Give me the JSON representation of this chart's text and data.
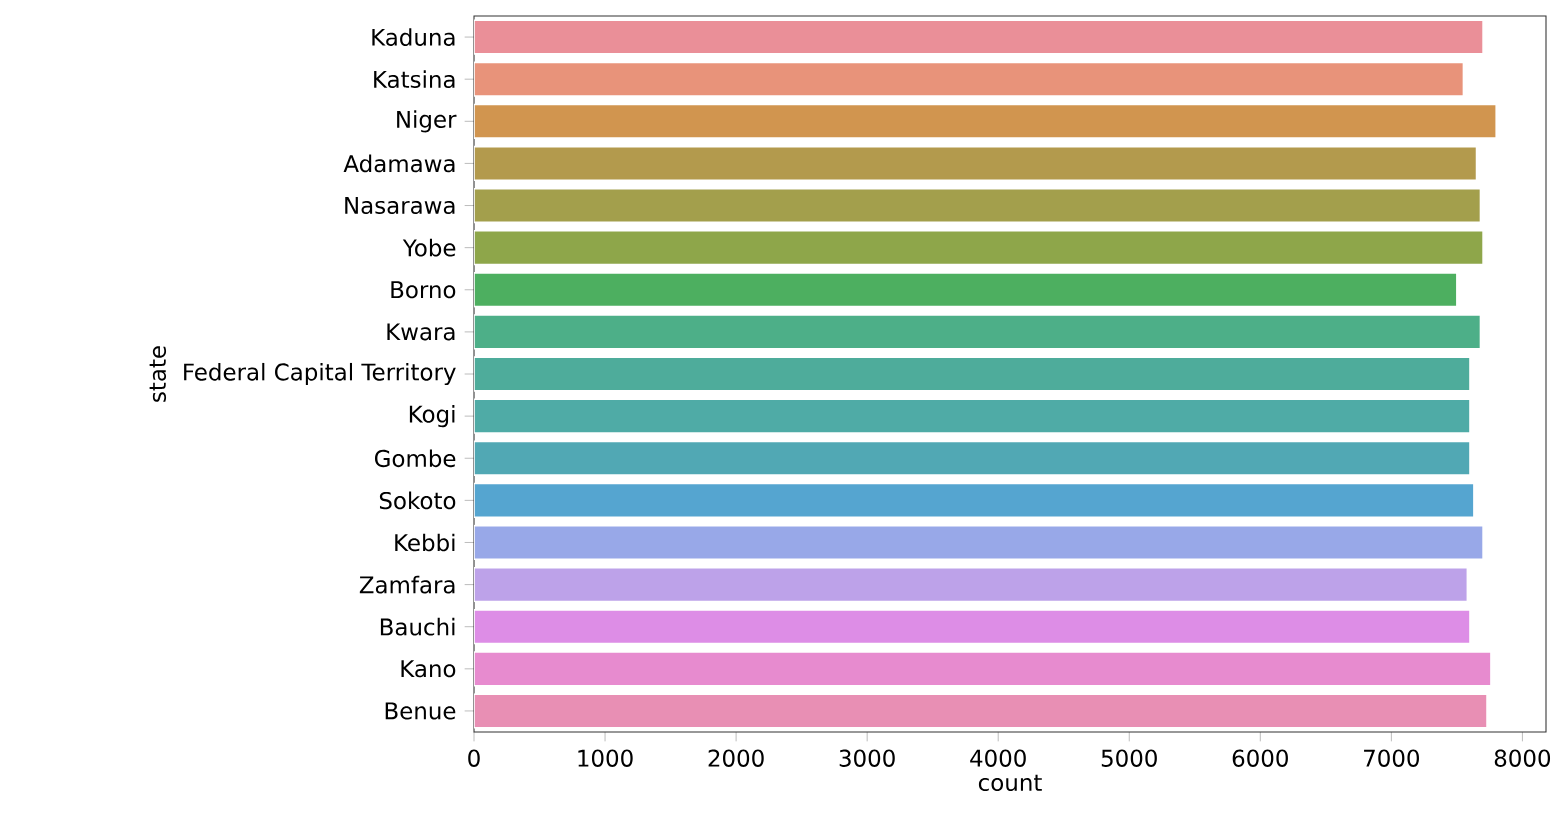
{
  "chart_data": {
    "type": "bar",
    "orientation": "horizontal",
    "xlabel": "count",
    "ylabel": "state",
    "categories": [
      "Kaduna",
      "Katsina",
      "Niger",
      "Adamawa",
      "Nasarawa",
      "Yobe",
      "Borno",
      "Kwara",
      "Federal Capital Territory",
      "Kogi",
      "Gombe",
      "Sokoto",
      "Kebbi",
      "Zamfara",
      "Bauchi",
      "Kano",
      "Benue"
    ],
    "values": [
      7700,
      7550,
      7800,
      7650,
      7680,
      7700,
      7500,
      7680,
      7600,
      7600,
      7600,
      7630,
      7700,
      7580,
      7600,
      7760,
      7730
    ],
    "colors": [
      "#ea8f98",
      "#e8937a",
      "#d1954f",
      "#b39a4d",
      "#a39f4c",
      "#8ea64a",
      "#4daf60",
      "#4daf88",
      "#4eac9b",
      "#4faba6",
      "#51a8b4",
      "#55a5d0",
      "#98a8e8",
      "#bda2e9",
      "#dd8de6",
      "#e78bcf",
      "#e88fb4"
    ],
    "xlim": [
      0,
      8180
    ],
    "xticks": [
      0,
      1000,
      2000,
      3000,
      4000,
      5000,
      6000,
      7000,
      8000
    ]
  }
}
